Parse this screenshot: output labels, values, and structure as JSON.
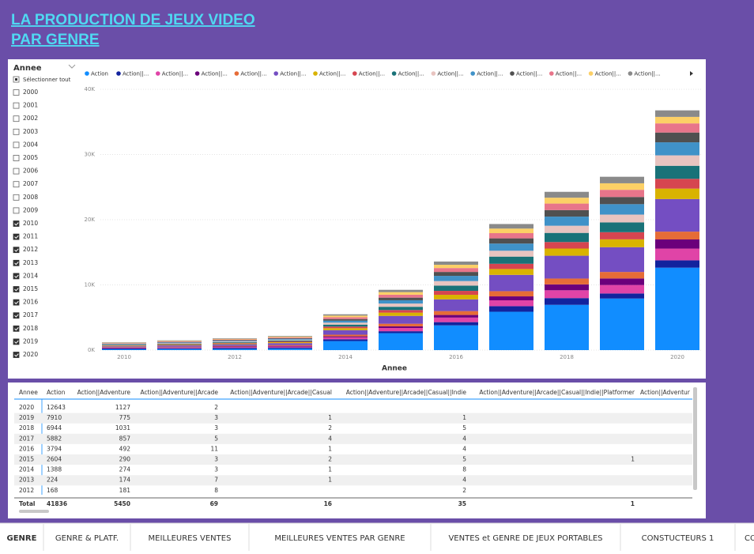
{
  "header": {
    "title_lines": [
      "LA PRODUCTION DE JEUX VIDEO",
      "PAR GENRE"
    ]
  },
  "slicer": {
    "title": "Annee",
    "select_all": "Sélectionner tout",
    "items": [
      {
        "label": "2000",
        "checked": false
      },
      {
        "label": "2001",
        "checked": false
      },
      {
        "label": "2002",
        "checked": false
      },
      {
        "label": "2003",
        "checked": false
      },
      {
        "label": "2004",
        "checked": false
      },
      {
        "label": "2005",
        "checked": false
      },
      {
        "label": "2006",
        "checked": false
      },
      {
        "label": "2007",
        "checked": false
      },
      {
        "label": "2008",
        "checked": false
      },
      {
        "label": "2009",
        "checked": false
      },
      {
        "label": "2010",
        "checked": true
      },
      {
        "label": "2011",
        "checked": true
      },
      {
        "label": "2012",
        "checked": true
      },
      {
        "label": "2013",
        "checked": true
      },
      {
        "label": "2014",
        "checked": true
      },
      {
        "label": "2015",
        "checked": true
      },
      {
        "label": "2016",
        "checked": true
      },
      {
        "label": "2017",
        "checked": true
      },
      {
        "label": "2018",
        "checked": true
      },
      {
        "label": "2019",
        "checked": true
      },
      {
        "label": "2020",
        "checked": true
      }
    ]
  },
  "chart_data": {
    "type": "stacked_bar",
    "x_label": "Annee",
    "categories": [
      "2010",
      null,
      "2012",
      null,
      "2014",
      null,
      "2016",
      null,
      "2018",
      null,
      "2020"
    ],
    "ylim": [
      0,
      40000
    ],
    "yticks": [
      {
        "value": 0,
        "label": "0K"
      },
      {
        "value": 10000,
        "label": "10K"
      },
      {
        "value": 20000,
        "label": "20K"
      },
      {
        "value": 30000,
        "label": "30K"
      },
      {
        "value": 40000,
        "label": "40K"
      }
    ],
    "series": [
      {
        "name": "Action",
        "color": "#118dff",
        "values": [
          120,
          159,
          168,
          224,
          1388,
          2604,
          3794,
          5882,
          6944,
          7910,
          12643
        ]
      },
      {
        "name": "Action||...",
        "color": "#12239e",
        "values": [
          120,
          129,
          181,
          174,
          274,
          290,
          492,
          857,
          1031,
          775,
          1127
        ]
      },
      {
        "name": "Action||...",
        "color": "#e044a7",
        "values": [
          80,
          100,
          120,
          150,
          300,
          500,
          700,
          900,
          1200,
          1300,
          1800
        ]
      },
      {
        "name": "Action||...",
        "color": "#6b007b",
        "values": [
          50,
          60,
          80,
          100,
          150,
          250,
          400,
          600,
          900,
          1000,
          1400
        ]
      },
      {
        "name": "Action||...",
        "color": "#e66c37",
        "values": [
          60,
          80,
          100,
          120,
          250,
          400,
          600,
          800,
          900,
          1000,
          1200
        ]
      },
      {
        "name": "Action||...",
        "color": "#744ec2",
        "values": [
          150,
          200,
          250,
          300,
          700,
          1200,
          1800,
          2500,
          3500,
          3800,
          5000
        ]
      },
      {
        "name": "Action||...",
        "color": "#d9b300",
        "values": [
          70,
          90,
          110,
          140,
          300,
          500,
          700,
          900,
          1100,
          1200,
          1600
        ]
      },
      {
        "name": "Action||...",
        "color": "#d64550",
        "values": [
          60,
          80,
          100,
          120,
          250,
          400,
          600,
          800,
          1000,
          1100,
          1500
        ]
      },
      {
        "name": "Action||...",
        "color": "#197278",
        "values": [
          80,
          100,
          120,
          150,
          300,
          500,
          800,
          1100,
          1400,
          1500,
          2000
        ]
      },
      {
        "name": "Action||...",
        "color": "#e8c4c0",
        "values": [
          70,
          90,
          100,
          120,
          300,
          500,
          700,
          900,
          1100,
          1200,
          1600
        ]
      },
      {
        "name": "Action||...",
        "color": "#4092c8",
        "values": [
          70,
          90,
          110,
          130,
          300,
          500,
          800,
          1100,
          1400,
          1600,
          2000
        ]
      },
      {
        "name": "Action||...",
        "color": "#505050",
        "values": [
          60,
          70,
          90,
          110,
          250,
          400,
          600,
          800,
          1000,
          1100,
          1500
        ]
      },
      {
        "name": "Action||...",
        "color": "#e8758a",
        "values": [
          70,
          80,
          100,
          120,
          280,
          450,
          600,
          800,
          1000,
          1100,
          1400
        ]
      },
      {
        "name": "Action||...",
        "color": "#fcd066",
        "values": [
          70,
          80,
          90,
          110,
          250,
          400,
          500,
          700,
          900,
          1000,
          1000
        ]
      },
      {
        "name": "Action||...",
        "color": "#8a8a8a",
        "values": [
          70,
          80,
          90,
          100,
          200,
          350,
          500,
          700,
          900,
          1000,
          1000
        ]
      }
    ]
  },
  "table": {
    "columns": [
      "Annee",
      "Action",
      "Action||Adventure",
      "Action||Adventure||Arcade",
      "Action||Adventure||Arcade||Casual",
      "Action||Adventure||Arcade||Casual||Indie",
      "Action||Adventure||Arcade||Casual||Indie||Platformer",
      "Action||Adventur"
    ],
    "rows": [
      [
        2020,
        12643,
        1127,
        2,
        null,
        null,
        null,
        null
      ],
      [
        2019,
        7910,
        775,
        3,
        1,
        1,
        null,
        null
      ],
      [
        2018,
        6944,
        1031,
        3,
        2,
        5,
        null,
        null
      ],
      [
        2017,
        5882,
        857,
        5,
        4,
        4,
        null,
        null
      ],
      [
        2016,
        3794,
        492,
        11,
        1,
        4,
        null,
        null
      ],
      [
        2015,
        2604,
        290,
        3,
        2,
        5,
        1,
        null
      ],
      [
        2014,
        1388,
        274,
        3,
        1,
        8,
        null,
        null
      ],
      [
        2013,
        224,
        174,
        7,
        1,
        4,
        null,
        null
      ],
      [
        2012,
        168,
        181,
        8,
        null,
        2,
        null,
        null
      ]
    ],
    "total": [
      "Total",
      41836,
      5450,
      69,
      16,
      35,
      1,
      null
    ]
  },
  "tabs": [
    "GENRE",
    "GENRE & PLATF.",
    "MEILLEURES VENTES",
    "MEILLEURES VENTES PAR GENRE",
    "VENTES et GENRE DE JEUX PORTABLES",
    "CONSTUCTEURS 1",
    "CO"
  ]
}
